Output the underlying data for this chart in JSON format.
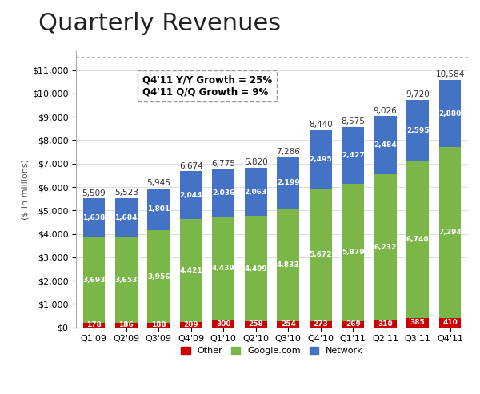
{
  "title": "Quarterly Revenues",
  "ylabel": "($ in millions)",
  "categories": [
    "Q1'09",
    "Q2'09",
    "Q3'09",
    "Q4'09",
    "Q1'10",
    "Q2'10",
    "Q3'10",
    "Q4'10",
    "Q1'11",
    "Q2'11",
    "Q3'11",
    "Q4'11"
  ],
  "other": [
    178,
    186,
    188,
    209,
    300,
    258,
    254,
    273,
    269,
    310,
    385,
    410
  ],
  "google": [
    3693,
    3653,
    3956,
    4421,
    4439,
    4499,
    4833,
    5672,
    5879,
    6232,
    6740,
    7294
  ],
  "network": [
    1638,
    1684,
    1801,
    2044,
    2036,
    2063,
    2199,
    2495,
    2427,
    2484,
    2595,
    2880
  ],
  "totals": [
    5509,
    5523,
    5945,
    6674,
    6775,
    6820,
    7286,
    8440,
    8575,
    9026,
    9720,
    10584
  ],
  "color_other": "#cc0000",
  "color_google": "#7ab648",
  "color_network": "#4472c4",
  "annotation_text": "Q4'11 Y/Y Growth = 25%\nQ4'11 Q/Q Growth = 9%",
  "ylim": [
    0,
    11800
  ],
  "yticks": [
    0,
    1000,
    2000,
    3000,
    4000,
    5000,
    6000,
    7000,
    8000,
    9000,
    10000,
    11000
  ],
  "ytick_labels": [
    "$0",
    "$1,000",
    "$2,000",
    "$3,000",
    "$4,000",
    "$5,000",
    "$6,000",
    "$7,000",
    "$8,000",
    "$9,000",
    "$10,000",
    "$11,000"
  ],
  "title_fontsize": 22,
  "axis_label_fontsize": 8,
  "bar_label_fontsize": 6.5,
  "total_label_fontsize": 7.5,
  "legend_fontsize": 8
}
